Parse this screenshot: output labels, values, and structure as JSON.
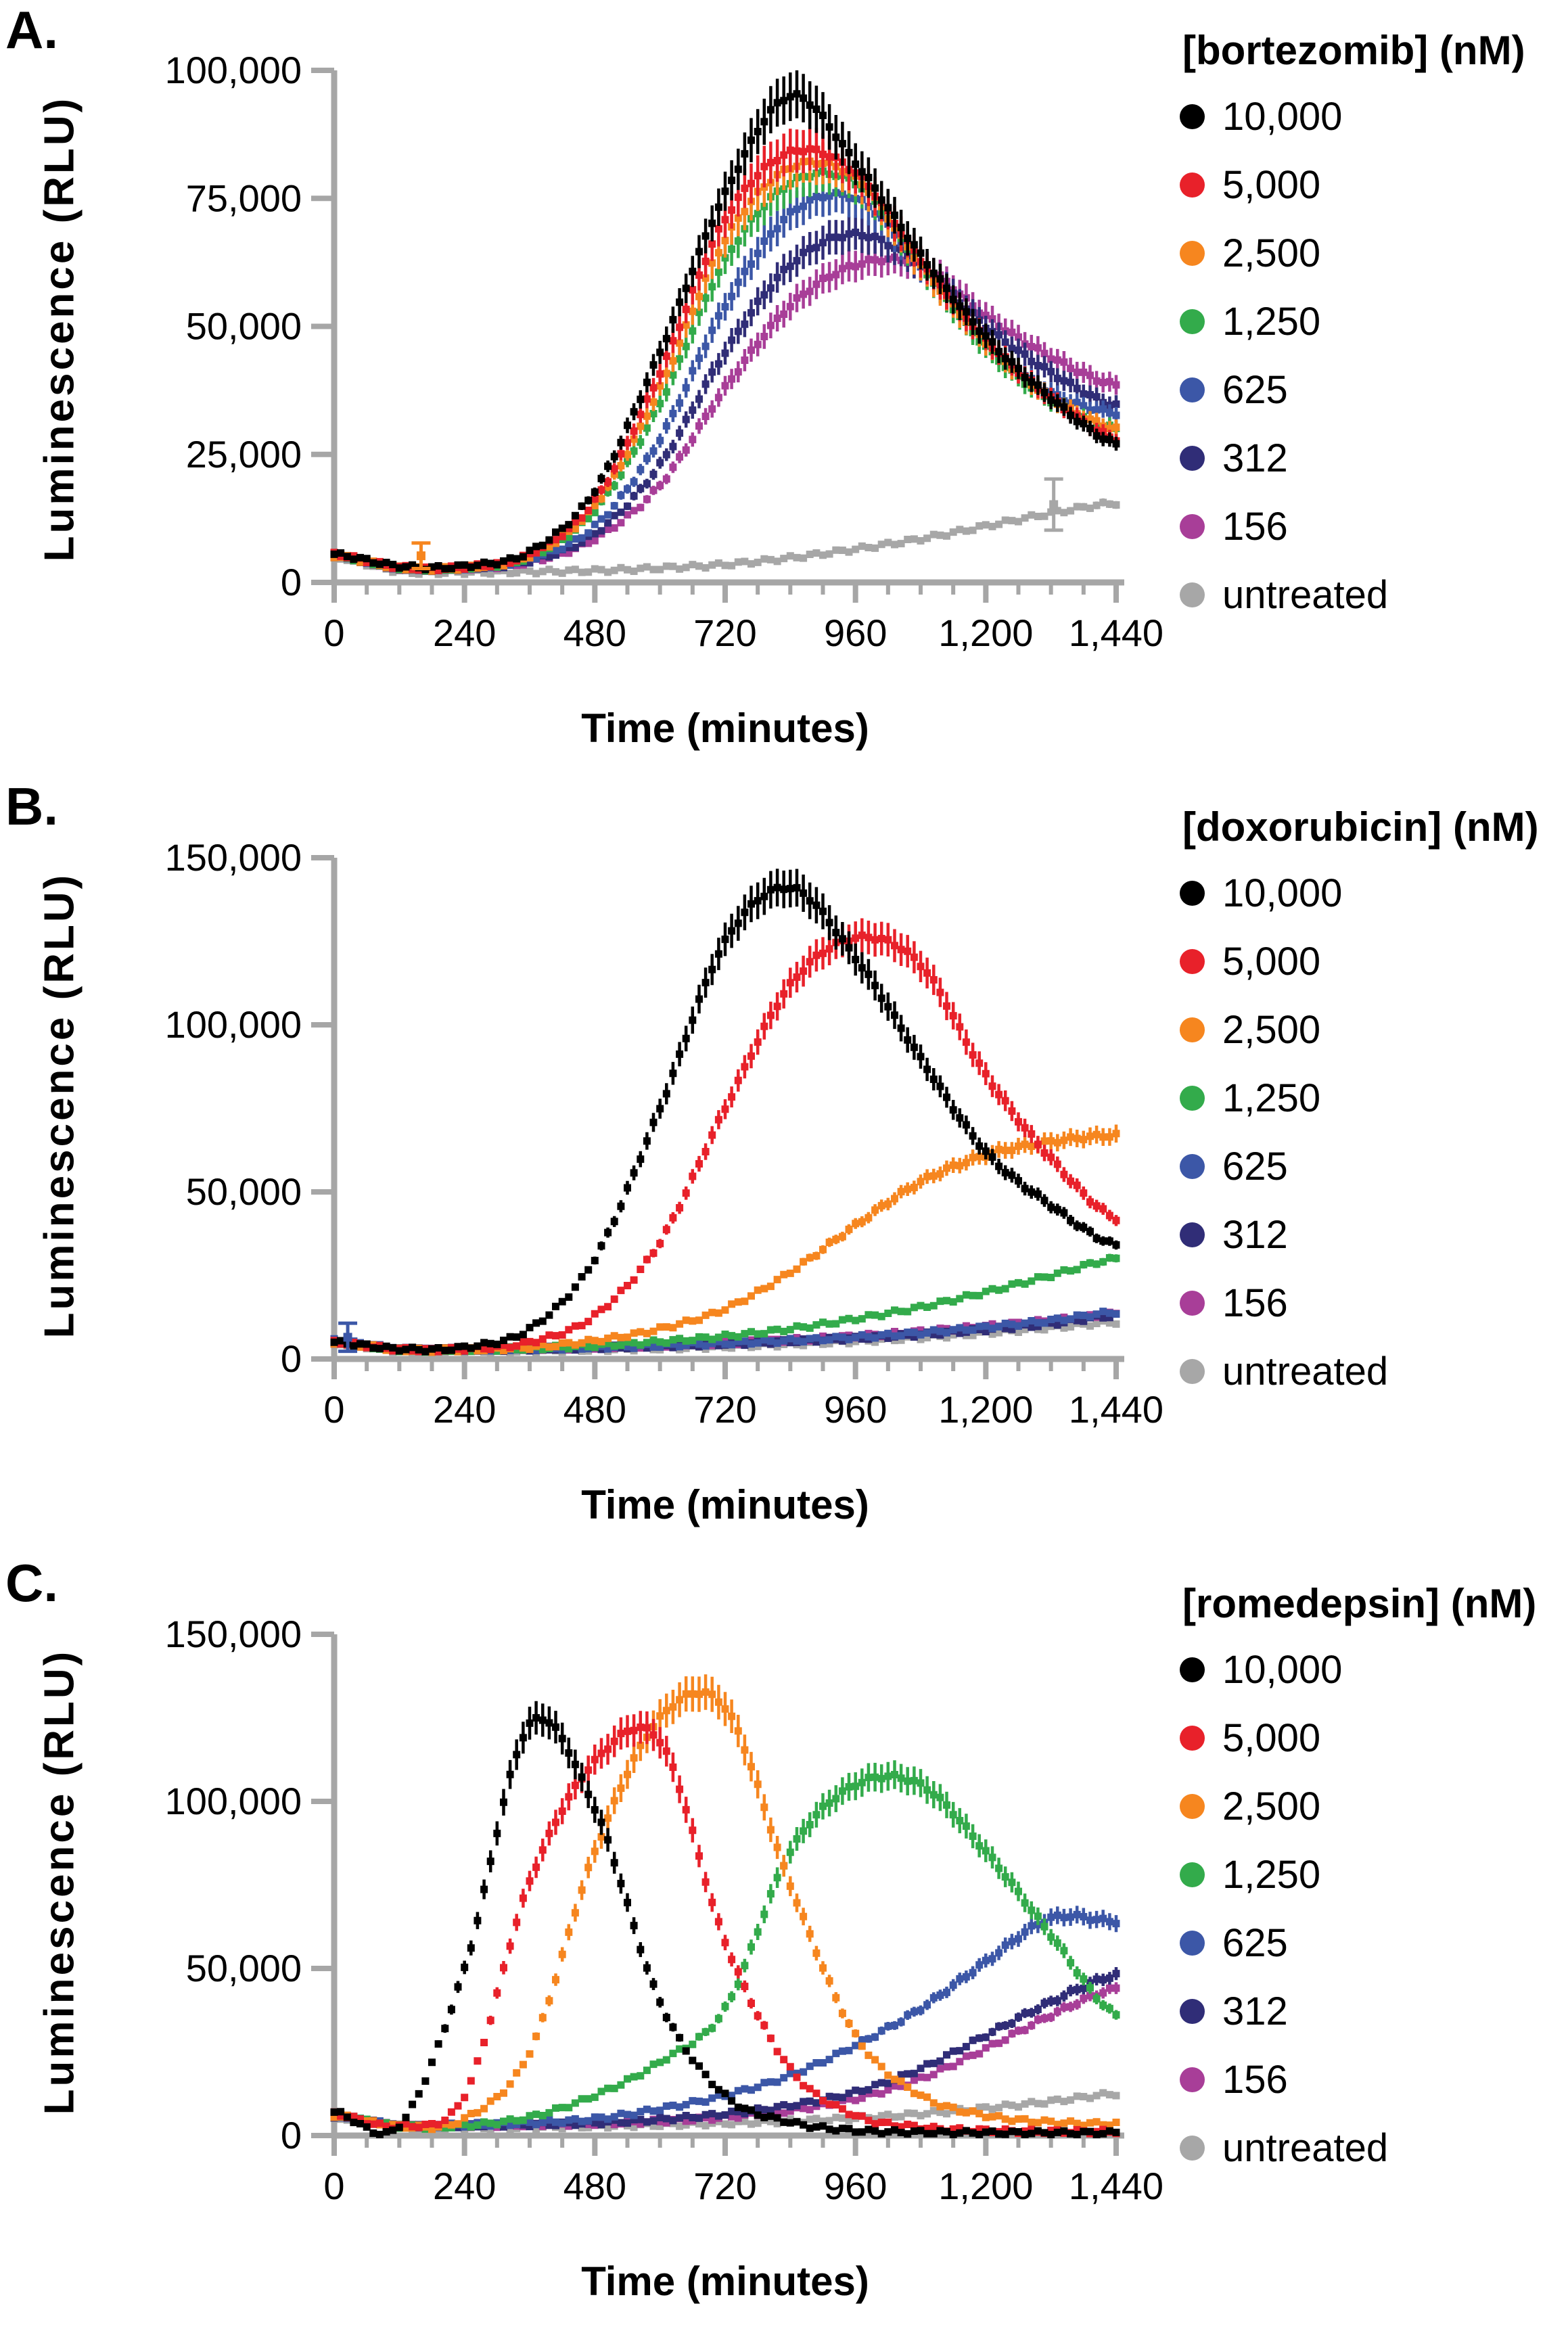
{
  "figure": {
    "background": "#ffffff",
    "axis_color": "#a6a6a6",
    "text_color": "#000000"
  },
  "chart_data": [
    {
      "type": "line",
      "panel_label": "A.",
      "legend_title": "[bortezomib] (nM)",
      "xlabel": "Time (minutes)",
      "ylabel": "Luminescence (RLU)",
      "xlim": [
        0,
        1440
      ],
      "ylim": [
        0,
        100000
      ],
      "x_major_ticks": [
        0,
        240,
        480,
        720,
        960,
        1200,
        1440
      ],
      "x_tick_labels": [
        "0",
        "240",
        "480",
        "720",
        "960",
        "1,200",
        "1,440"
      ],
      "x_minor_step": 60,
      "y_major_ticks": [
        0,
        25000,
        50000,
        75000,
        100000
      ],
      "y_tick_labels": [
        "0",
        "25,000",
        "50,000",
        "75,000",
        "100,000"
      ],
      "legend_position": "right",
      "grid": false,
      "sample_x": [
        0,
        120,
        240,
        360,
        480,
        600,
        720,
        840,
        960,
        1080,
        1200,
        1320,
        1440
      ],
      "series": [
        {
          "label": "10,000",
          "color": "#000000",
          "values": [
            5500,
            3200,
            3200,
            6000,
            18000,
            45000,
            76000,
            95000,
            82000,
            64000,
            48000,
            36000,
            27000
          ]
        },
        {
          "label": "5,000",
          "color": "#e8212a",
          "values": [
            5500,
            3000,
            3000,
            5500,
            16000,
            41000,
            71000,
            84000,
            80000,
            63000,
            47500,
            36000,
            28000
          ]
        },
        {
          "label": "2,500",
          "color": "#f6861f",
          "values": [
            5200,
            2900,
            2900,
            5200,
            15000,
            38000,
            67000,
            81000,
            79000,
            62000,
            47000,
            36000,
            30000
          ]
        },
        {
          "label": "1,250",
          "color": "#33ab4b",
          "values": [
            5200,
            2900,
            2900,
            5000,
            14000,
            35000,
            63000,
            78000,
            78000,
            62000,
            46000,
            35500,
            30000
          ]
        },
        {
          "label": "625",
          "color": "#3c57a7",
          "values": [
            5300,
            2900,
            2900,
            4600,
            11000,
            28000,
            54000,
            72000,
            75000,
            62000,
            47000,
            37000,
            33000
          ]
        },
        {
          "label": "312",
          "color": "#302d77",
          "values": [
            5200,
            2800,
            2800,
            4200,
            9500,
            23000,
            45000,
            62000,
            68000,
            62000,
            50000,
            41000,
            34500
          ]
        },
        {
          "label": "156",
          "color": "#a83e98",
          "values": [
            5200,
            2800,
            2800,
            4000,
            8500,
            19000,
            38000,
            54000,
            62000,
            62000,
            52000,
            44000,
            38500
          ]
        },
        {
          "label": "untreated",
          "color": "#a7a7a7",
          "values": [
            5000,
            2200,
            2000,
            2100,
            2300,
            2800,
            3500,
            4800,
            6500,
            8500,
            11000,
            13500,
            15500
          ]
        }
      ],
      "outliers": [
        {
          "series": 2,
          "t": 160,
          "v": 5200,
          "err": 2500
        },
        {
          "series": 7,
          "t": 1325,
          "v": 15200,
          "err": 5000
        }
      ]
    },
    {
      "type": "line",
      "panel_label": "B.",
      "legend_title": "[doxorubicin] (nM)",
      "xlabel": "Time (minutes)",
      "ylabel": "Luminescence (RLU)",
      "xlim": [
        0,
        1440
      ],
      "ylim": [
        0,
        150000
      ],
      "x_major_ticks": [
        0,
        240,
        480,
        720,
        960,
        1200,
        1440
      ],
      "x_tick_labels": [
        "0",
        "240",
        "480",
        "720",
        "960",
        "1,200",
        "1,440"
      ],
      "x_minor_step": 60,
      "y_major_ticks": [
        0,
        50000,
        100000,
        150000
      ],
      "y_tick_labels": [
        "0",
        "50,000",
        "100,000",
        "150,000"
      ],
      "legend_position": "right",
      "grid": false,
      "sample_x": [
        0,
        120,
        240,
        360,
        480,
        600,
        720,
        840,
        960,
        1080,
        1200,
        1320,
        1440
      ],
      "series": [
        {
          "label": "10,000",
          "color": "#000000",
          "values": [
            5000,
            3000,
            3500,
            9000,
            30000,
            75000,
            125000,
            141000,
            120000,
            90000,
            62000,
            46000,
            34000
          ]
        },
        {
          "label": "5,000",
          "color": "#e8212a",
          "values": [
            5000,
            2900,
            3000,
            5000,
            13000,
            35000,
            75000,
            112000,
            126000,
            118000,
            85000,
            60000,
            42000
          ]
        },
        {
          "label": "2,500",
          "color": "#f6861f",
          "values": [
            5000,
            2800,
            2800,
            3500,
            5500,
            9000,
            15000,
            26000,
            40000,
            53000,
            61000,
            65000,
            67000
          ]
        },
        {
          "label": "1,250",
          "color": "#33ab4b",
          "values": [
            4800,
            2800,
            2800,
            3200,
            4000,
            5200,
            6800,
            9000,
            12000,
            15500,
            20000,
            25000,
            30000
          ]
        },
        {
          "label": "625",
          "color": "#3c57a7",
          "values": [
            5500,
            3000,
            2900,
            3100,
            3500,
            4000,
            4700,
            5500,
            6500,
            7800,
            9500,
            11500,
            14000
          ]
        },
        {
          "label": "312",
          "color": "#302d77",
          "values": [
            5000,
            2900,
            2800,
            3000,
            3400,
            3900,
            4500,
            5300,
            6200,
            7300,
            8800,
            10500,
            13000
          ]
        },
        {
          "label": "156",
          "color": "#a83e98",
          "values": [
            5000,
            2900,
            2900,
            3100,
            3500,
            4100,
            4800,
            5700,
            6800,
            8200,
            9800,
            11500,
            13500
          ]
        },
        {
          "label": "untreated",
          "color": "#a7a7a7",
          "values": [
            4800,
            2500,
            2300,
            2500,
            2800,
            3200,
            3700,
            4400,
            5300,
            6400,
            7800,
            9400,
            11000
          ]
        }
      ],
      "outliers": [
        {
          "series": 4,
          "t": 25,
          "v": 6500,
          "err": 4200
        }
      ]
    },
    {
      "type": "line",
      "panel_label": "C.",
      "legend_title": "[romedepsin] (nM)",
      "xlabel": "Time (minutes)",
      "ylabel": "Luminescence (RLU)",
      "xlim": [
        0,
        1440
      ],
      "ylim": [
        0,
        150000
      ],
      "x_major_ticks": [
        0,
        240,
        480,
        720,
        960,
        1200,
        1440
      ],
      "x_tick_labels": [
        "0",
        "240",
        "480",
        "720",
        "960",
        "1,200",
        "1,440"
      ],
      "x_minor_step": 60,
      "y_major_ticks": [
        0,
        50000,
        100000,
        150000
      ],
      "y_tick_labels": [
        "0",
        "50,000",
        "100,000",
        "150,000"
      ],
      "legend_position": "right",
      "grid": false,
      "sample_x": [
        0,
        120,
        240,
        360,
        480,
        600,
        720,
        840,
        960,
        1080,
        1200,
        1320,
        1440
      ],
      "series": [
        {
          "label": "10,000",
          "color": "#000000",
          "values": [
            7000,
            3000,
            50000,
            123000,
            98000,
            40000,
            12000,
            4000,
            1500,
            1000,
            800,
            800,
            800
          ]
        },
        {
          "label": "5,000",
          "color": "#e8212a",
          "values": [
            6500,
            2800,
            12000,
            76000,
            112000,
            118000,
            58000,
            20000,
            6000,
            2500,
            1500,
            1200,
            1200
          ]
        },
        {
          "label": "2,500",
          "color": "#f6861f",
          "values": [
            6000,
            2800,
            5000,
            25000,
            85000,
            125000,
            128000,
            75000,
            30000,
            12000,
            6000,
            4000,
            3500
          ]
        },
        {
          "label": "1,250",
          "color": "#33ab4b",
          "values": [
            6000,
            2800,
            3000,
            5500,
            12000,
            22000,
            38000,
            85000,
            105000,
            105000,
            85000,
            60000,
            36000
          ]
        },
        {
          "label": "625",
          "color": "#3c57a7",
          "values": [
            6000,
            3000,
            3200,
            3800,
            5000,
            8000,
            12000,
            18000,
            27000,
            38000,
            52000,
            65000,
            64000
          ]
        },
        {
          "label": "312",
          "color": "#302d77",
          "values": [
            5800,
            2900,
            3000,
            3300,
            3800,
            4800,
            6500,
            9000,
            13000,
            20000,
            30000,
            40000,
            48000
          ]
        },
        {
          "label": "156",
          "color": "#a83e98",
          "values": [
            5800,
            2900,
            3000,
            3200,
            3600,
            4300,
            5500,
            7500,
            11000,
            17000,
            26000,
            36000,
            44000
          ]
        },
        {
          "label": "untreated",
          "color": "#a7a7a7",
          "values": [
            5500,
            2500,
            2300,
            2500,
            2800,
            3200,
            3700,
            4300,
            5200,
            6500,
            8200,
            10200,
            12500
          ]
        }
      ],
      "outliers": []
    }
  ]
}
